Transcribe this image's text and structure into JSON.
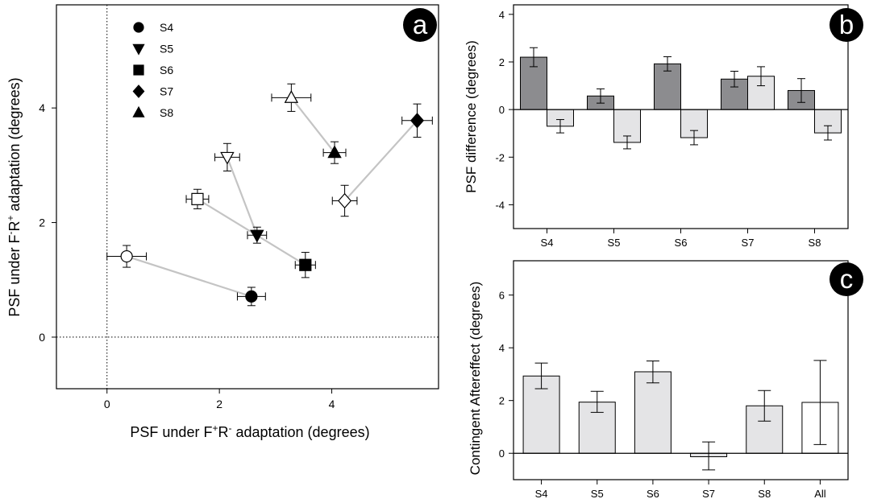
{
  "chart_data": [
    {
      "panel": "a",
      "type": "scatter",
      "xlabel_parts": [
        "PSF under F",
        "+",
        "R",
        "-",
        " adaptation (degrees)"
      ],
      "ylabel_parts": [
        "PSF under F",
        "-",
        "R",
        "+",
        " adaptation (degrees)"
      ],
      "xlim": [
        -0.9,
        5.9
      ],
      "ylim": [
        -0.9,
        5.8
      ],
      "xticks": [
        0,
        2,
        4
      ],
      "yticks": [
        0,
        2,
        4
      ],
      "reference_lines": {
        "x": 0,
        "y": 0,
        "style": "dotted"
      },
      "legend_position": "top-left",
      "subjects": [
        {
          "name": "S4",
          "marker": "circle",
          "open": {
            "x": 0.35,
            "y": 1.41,
            "xerr": 0.35,
            "yerr": 0.19
          },
          "filled": {
            "x": 2.57,
            "y": 0.71,
            "xerr": 0.25,
            "yerr": 0.16
          }
        },
        {
          "name": "S5",
          "marker": "triangle-down",
          "open": {
            "x": 2.14,
            "y": 3.14,
            "xerr": 0.22,
            "yerr": 0.24
          },
          "filled": {
            "x": 2.67,
            "y": 1.78,
            "xerr": 0.17,
            "yerr": 0.14
          }
        },
        {
          "name": "S6",
          "marker": "square",
          "open": {
            "x": 1.61,
            "y": 2.41,
            "xerr": 0.2,
            "yerr": 0.17
          },
          "filled": {
            "x": 3.53,
            "y": 1.26,
            "xerr": 0.18,
            "yerr": 0.22
          }
        },
        {
          "name": "S7",
          "marker": "diamond",
          "open": {
            "x": 4.23,
            "y": 2.38,
            "xerr": 0.22,
            "yerr": 0.27
          },
          "filled": {
            "x": 5.52,
            "y": 3.78,
            "xerr": 0.27,
            "yerr": 0.29
          }
        },
        {
          "name": "S8",
          "marker": "triangle-up",
          "open": {
            "x": 3.28,
            "y": 4.18,
            "xerr": 0.35,
            "yerr": 0.24
          },
          "filled": {
            "x": 4.05,
            "y": 3.22,
            "xerr": 0.2,
            "yerr": 0.19
          }
        }
      ]
    },
    {
      "panel": "b",
      "type": "bar",
      "ylabel": "PSF difference (degrees)",
      "ylim": [
        -5,
        4.4
      ],
      "yticks": [
        -4,
        -2,
        0,
        2,
        4
      ],
      "categories": [
        "S4",
        "S5",
        "S6",
        "S7",
        "S8"
      ],
      "series": [
        {
          "color": "#8c8c8f",
          "values": [
            2.2,
            0.57,
            1.92,
            1.28,
            0.8
          ],
          "errors": [
            0.4,
            0.3,
            0.3,
            0.33,
            0.5
          ]
        },
        {
          "color": "#e4e4e6",
          "values": [
            -0.7,
            -1.38,
            -1.18,
            1.4,
            -0.98
          ],
          "errors": [
            0.28,
            0.27,
            0.3,
            0.4,
            0.3
          ]
        }
      ]
    },
    {
      "panel": "c",
      "type": "bar",
      "ylabel": "Contingent Aftereffect (degrees)",
      "ylim": [
        -1,
        7.3
      ],
      "yticks": [
        0,
        2,
        4,
        6
      ],
      "categories": [
        "S4",
        "S5",
        "S6",
        "S7",
        "S8",
        "All"
      ],
      "values": [
        2.93,
        1.94,
        3.09,
        -0.13,
        1.8,
        1.93
      ],
      "err_high": [
        3.42,
        2.35,
        3.5,
        0.43,
        2.38,
        3.52
      ],
      "err_low": [
        2.45,
        1.55,
        2.67,
        -0.63,
        1.22,
        0.33
      ],
      "colors": [
        "#e4e4e6",
        "#e4e4e6",
        "#e4e4e6",
        "#e4e4e6",
        "#e4e4e6",
        "#ffffff"
      ]
    }
  ],
  "panel_labels": {
    "a": "a",
    "b": "b",
    "c": "c"
  }
}
